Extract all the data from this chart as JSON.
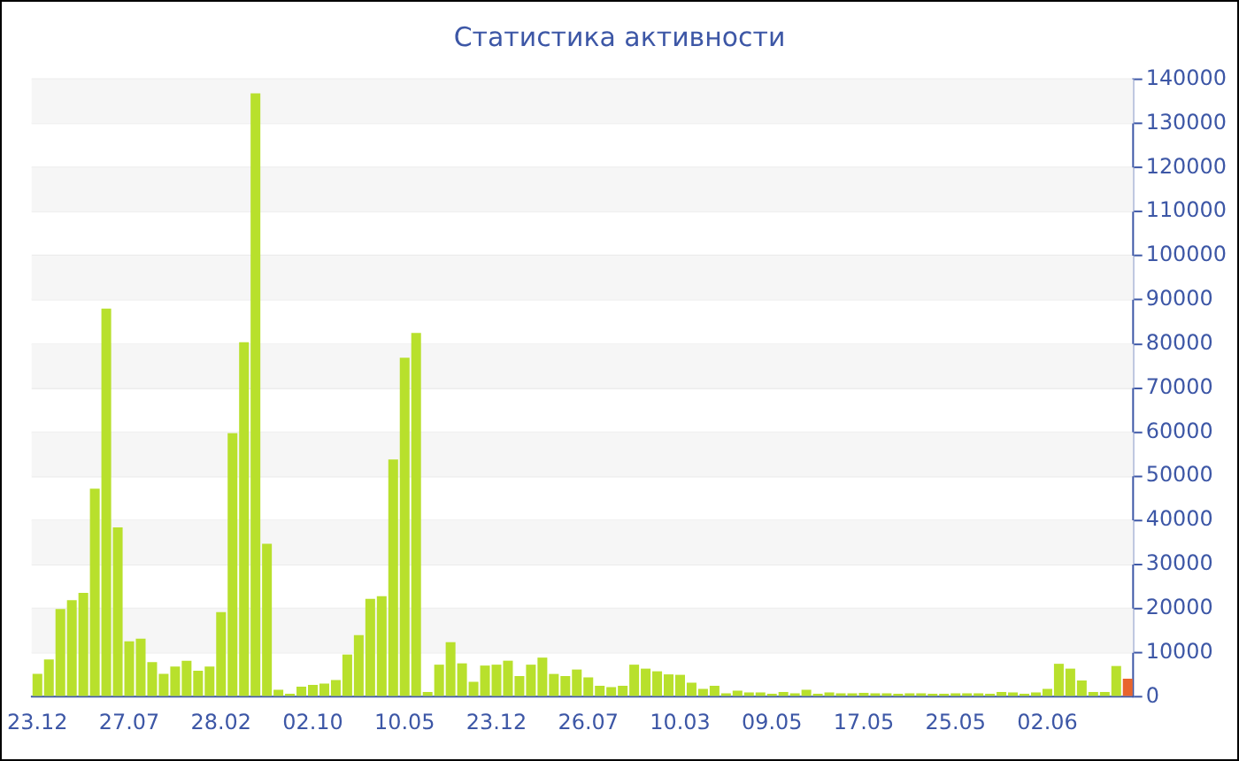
{
  "chart_data": {
    "type": "bar",
    "title": "Статистика активности",
    "categories": [
      "23.12",
      null,
      null,
      null,
      null,
      null,
      null,
      null,
      "27.07",
      null,
      null,
      null,
      null,
      null,
      null,
      null,
      "28.02",
      null,
      null,
      null,
      null,
      null,
      null,
      null,
      "02.10",
      null,
      null,
      null,
      null,
      null,
      null,
      null,
      "10.05",
      null,
      null,
      null,
      null,
      null,
      null,
      null,
      "23.12",
      null,
      null,
      null,
      null,
      null,
      null,
      null,
      "26.07",
      null,
      null,
      null,
      null,
      null,
      null,
      null,
      "10.03",
      null,
      null,
      null,
      null,
      null,
      null,
      null,
      "09.05",
      null,
      null,
      null,
      null,
      null,
      null,
      null,
      "17.05",
      null,
      null,
      null,
      null,
      null,
      null,
      null,
      "25.05",
      null,
      null,
      null,
      null,
      null,
      null,
      null,
      "02.06",
      null,
      null,
      null,
      null,
      null,
      null,
      null
    ],
    "values": [
      5200,
      8500,
      19900,
      21900,
      23600,
      47200,
      88000,
      38400,
      12600,
      13200,
      7900,
      5200,
      6900,
      8200,
      5900,
      6900,
      19200,
      59800,
      80400,
      136800,
      34700,
      1600,
      700,
      2300,
      2700,
      3000,
      3800,
      9600,
      14000,
      22200,
      22800,
      53800,
      76900,
      82500,
      1100,
      7300,
      12400,
      7600,
      3400,
      7100,
      7300,
      8200,
      4700,
      7300,
      8900,
      5200,
      4700,
      6200,
      4400,
      2500,
      2200,
      2500,
      7300,
      6400,
      5800,
      5100,
      5000,
      3200,
      1800,
      2500,
      800,
      1400,
      1000,
      1000,
      700,
      1100,
      800,
      1600,
      700,
      1000,
      800,
      800,
      900,
      800,
      800,
      700,
      800,
      800,
      700,
      700,
      800,
      800,
      800,
      700,
      1100,
      1000,
      700,
      1000,
      1800,
      7500,
      6400,
      3700,
      1100,
      1100,
      7000,
      4100
    ],
    "colors": [
      "#b8e02c",
      "#b8e02c",
      "#b8e02c",
      "#b8e02c",
      "#b8e02c",
      "#b8e02c",
      "#b8e02c",
      "#b8e02c",
      "#b8e02c",
      "#b8e02c",
      "#b8e02c",
      "#b8e02c",
      "#b8e02c",
      "#b8e02c",
      "#b8e02c",
      "#b8e02c",
      "#b8e02c",
      "#b8e02c",
      "#b8e02c",
      "#b8e02c",
      "#b8e02c",
      "#b8e02c",
      "#b8e02c",
      "#b8e02c",
      "#b8e02c",
      "#b8e02c",
      "#b8e02c",
      "#b8e02c",
      "#b8e02c",
      "#b8e02c",
      "#b8e02c",
      "#b8e02c",
      "#b8e02c",
      "#b8e02c",
      "#b8e02c",
      "#b8e02c",
      "#b8e02c",
      "#b8e02c",
      "#b8e02c",
      "#b8e02c",
      "#b8e02c",
      "#b8e02c",
      "#b8e02c",
      "#b8e02c",
      "#b8e02c",
      "#b8e02c",
      "#b8e02c",
      "#b8e02c",
      "#b8e02c",
      "#b8e02c",
      "#b8e02c",
      "#b8e02c",
      "#b8e02c",
      "#b8e02c",
      "#b8e02c",
      "#b8e02c",
      "#b8e02c",
      "#b8e02c",
      "#b8e02c",
      "#b8e02c",
      "#b8e02c",
      "#b8e02c",
      "#b8e02c",
      "#b8e02c",
      "#b8e02c",
      "#b8e02c",
      "#b8e02c",
      "#b8e02c",
      "#b8e02c",
      "#b8e02c",
      "#b8e02c",
      "#b8e02c",
      "#b8e02c",
      "#b8e02c",
      "#b8e02c",
      "#b8e02c",
      "#b8e02c",
      "#b8e02c",
      "#b8e02c",
      "#b8e02c",
      "#b8e02c",
      "#b8e02c",
      "#b8e02c",
      "#b8e02c",
      "#b8e02c",
      "#b8e02c",
      "#b8e02c",
      "#b8e02c",
      "#b8e02c",
      "#b8e02c",
      "#b8e02c",
      "#b8e02c",
      "#b8e02c",
      "#b8e02c",
      "#b8e02c",
      "#e8642c"
    ],
    "ylim": [
      0,
      140000
    ],
    "yticks": [
      0,
      10000,
      20000,
      30000,
      40000,
      50000,
      60000,
      70000,
      80000,
      90000,
      100000,
      110000,
      120000,
      130000,
      140000
    ],
    "grid": "y"
  }
}
